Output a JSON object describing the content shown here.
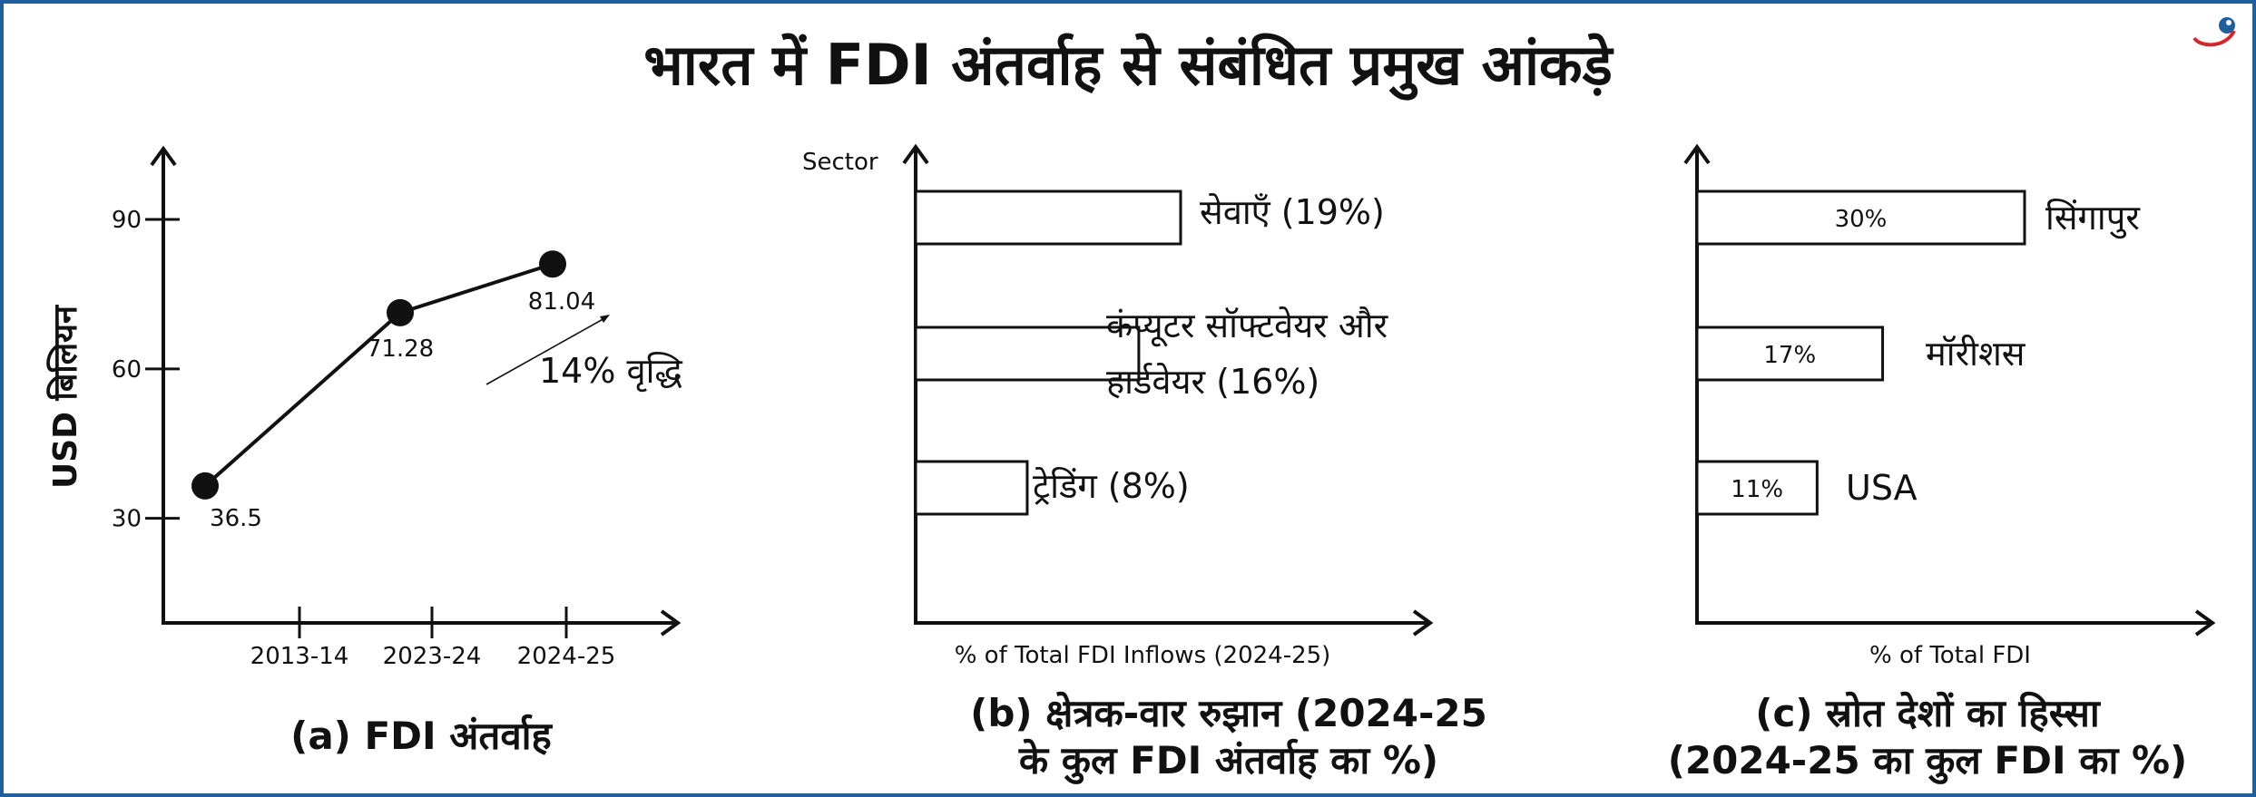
{
  "title": "भारत में FDI अंतर्वाह से संबंधित प्रमुख आंकड़े",
  "colors": {
    "border": "#1f5f9e",
    "ink": "#111111",
    "logo_red": "#d7262b",
    "logo_blue": "#1f5f9e"
  },
  "logo": {
    "icon": "brand-logo-icon"
  },
  "chart_data": [
    {
      "type": "line",
      "caption": "(a) FDI अंतर्वाह",
      "ylabel": "USD बिलियन",
      "xlabel": "",
      "y_ticks": [
        30,
        60,
        90
      ],
      "x_tick_labels": [
        "2013-14",
        "2023-24",
        "2024-25"
      ],
      "series": [
        {
          "points": [
            {
              "x": "2013-14",
              "y": 36.5,
              "label": "36.5"
            },
            {
              "x": "2023-24",
              "y": 71.28,
              "label": "71.28"
            },
            {
              "x": "2024-25",
              "y": 81.04,
              "label": "81.04"
            }
          ]
        }
      ],
      "annotation": "14% वृद्धि",
      "grid": false
    },
    {
      "type": "bar",
      "orientation": "horizontal",
      "caption_line1": "(b) क्षेत्रक-वार रुझान (2024-25",
      "caption_line2": "के कुल FDI अंतर्वाह का %)",
      "ylabel": "Sector",
      "xlabel": "% of Total FDI Inflows (2024-25)",
      "bars": [
        {
          "label": "सेवाएँ (19%)",
          "value": 19
        },
        {
          "label_line1": "कंप्यूटर सॉफ्टवेयर और",
          "label_line2": "हार्डवेयर (16%)",
          "value": 16
        },
        {
          "label": "ट्रेडिंग (8%)",
          "value": 8
        }
      ],
      "grid": false
    },
    {
      "type": "bar",
      "orientation": "horizontal",
      "caption_line1": "(c) स्रोत देशों का हिस्सा",
      "caption_line2": "(2024-25 का कुल FDI का %)",
      "xlabel": "% of Total FDI",
      "bars": [
        {
          "label": "सिंगापुर",
          "value": 30,
          "value_label": "30%"
        },
        {
          "label": "मॉरीशस",
          "value": 17,
          "value_label": "17%"
        },
        {
          "label": "USA",
          "value": 11,
          "value_label": "11%"
        }
      ],
      "grid": false
    }
  ]
}
